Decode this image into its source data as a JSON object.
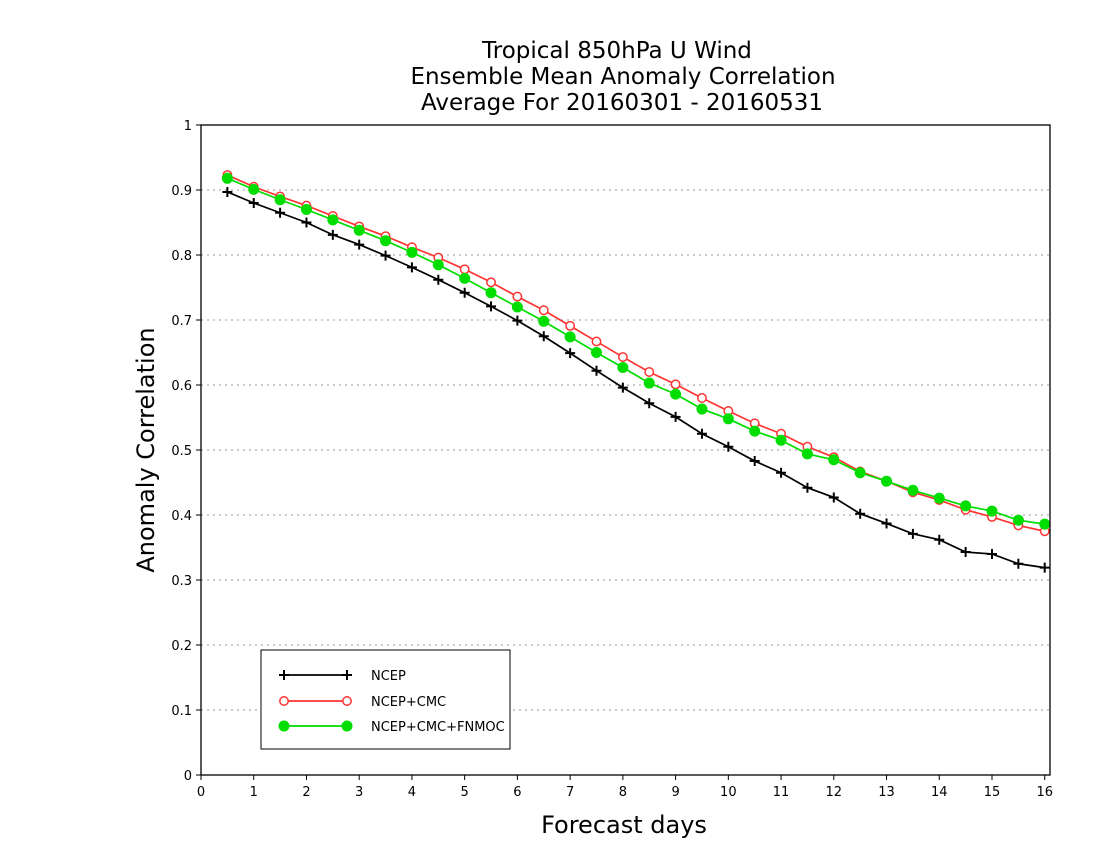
{
  "chart_data": {
    "type": "line",
    "title": [
      "Tropical 850hPa U Wind",
      "Ensemble Mean Anomaly Correlation",
      "Average For 20160301 - 20160531"
    ],
    "xlabel": "Forecast days",
    "ylabel": "Anomaly Correlation",
    "xlim": [
      0,
      16.1
    ],
    "ylim": [
      0,
      1
    ],
    "xticks": [
      "0",
      "1",
      "2",
      "3",
      "4",
      "5",
      "6",
      "7",
      "8",
      "9",
      "10",
      "11",
      "12",
      "13",
      "14",
      "15",
      "16"
    ],
    "yticks": [
      "0",
      "0.1",
      "0.2",
      "0.3",
      "0.4",
      "0.5",
      "0.6",
      "0.7",
      "0.8",
      "0.9",
      "1"
    ],
    "grid": "horizontal dotted",
    "legend_position": "bottom-left",
    "x": [
      0.5,
      1,
      1.5,
      2,
      2.5,
      3,
      3.5,
      4,
      4.5,
      5,
      5.5,
      6,
      6.5,
      7,
      7.5,
      8,
      8.5,
      9,
      9.5,
      10,
      10.5,
      11,
      11.5,
      12,
      12.5,
      13,
      13.5,
      14,
      14.5,
      15,
      15.5,
      16
    ],
    "series": [
      {
        "name": "NCEP",
        "color": "#000000",
        "marker": "plus",
        "values": [
          0.897,
          0.88,
          0.865,
          0.85,
          0.831,
          0.816,
          0.799,
          0.781,
          0.762,
          0.742,
          0.721,
          0.699,
          0.675,
          0.649,
          0.622,
          0.596,
          0.572,
          0.551,
          0.525,
          0.505,
          0.483,
          0.465,
          0.442,
          0.427,
          0.402,
          0.387,
          0.371,
          0.362,
          0.343,
          0.34,
          0.325,
          0.319
        ]
      },
      {
        "name": "NCEP+CMC",
        "color": "#ff3333",
        "marker": "open-circle",
        "values": [
          0.923,
          0.905,
          0.89,
          0.876,
          0.86,
          0.844,
          0.829,
          0.812,
          0.796,
          0.778,
          0.758,
          0.736,
          0.715,
          0.691,
          0.667,
          0.643,
          0.62,
          0.601,
          0.58,
          0.56,
          0.541,
          0.525,
          0.505,
          0.489,
          0.467,
          0.452,
          0.435,
          0.423,
          0.408,
          0.397,
          0.384,
          0.375
        ]
      },
      {
        "name": "NCEP+CMC+FNMOC",
        "color": "#00dd00",
        "marker": "filled-circle",
        "values": [
          0.918,
          0.901,
          0.885,
          0.87,
          0.854,
          0.838,
          0.822,
          0.804,
          0.785,
          0.764,
          0.742,
          0.72,
          0.698,
          0.674,
          0.65,
          0.627,
          0.603,
          0.586,
          0.563,
          0.548,
          0.529,
          0.515,
          0.494,
          0.485,
          0.465,
          0.452,
          0.438,
          0.426,
          0.414,
          0.406,
          0.392,
          0.386
        ]
      }
    ]
  }
}
